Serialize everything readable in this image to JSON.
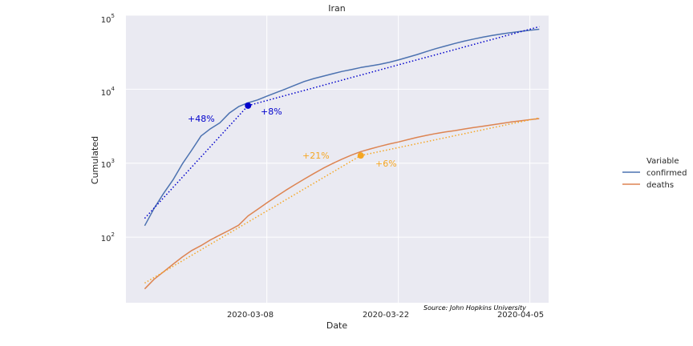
{
  "chart_data": {
    "type": "line",
    "title": "Iran",
    "xlabel": "Date",
    "ylabel": "Cumulated",
    "yscale": "log",
    "ylim": [
      13,
      100000
    ],
    "xlim": [
      "2020-02-22",
      "2020-04-07"
    ],
    "x_tick_labels": [
      "2020-03-08",
      "2020-03-22",
      "2020-04-05"
    ],
    "y_tick_labels": [
      {
        "base": "10",
        "exp": "2",
        "value": 100
      },
      {
        "base": "10",
        "exp": "3",
        "value": 1000
      },
      {
        "base": "10",
        "exp": "4",
        "value": 10000
      },
      {
        "base": "10",
        "exp": "5",
        "value": 100000
      }
    ],
    "grid": true,
    "background": "#eaeaf2",
    "legend": {
      "title": "Variable",
      "placement": "right",
      "entries": [
        {
          "name": "confirmed",
          "color": "#4c72b0"
        },
        {
          "name": "deaths",
          "color": "#dd8452"
        }
      ]
    },
    "series": [
      {
        "name": "confirmed",
        "color": "#4c72b0",
        "x": [
          "2020-02-24",
          "2020-02-25",
          "2020-02-26",
          "2020-02-27",
          "2020-02-28",
          "2020-02-29",
          "2020-03-01",
          "2020-03-02",
          "2020-03-03",
          "2020-03-04",
          "2020-03-05",
          "2020-03-06",
          "2020-03-07",
          "2020-03-08",
          "2020-03-09",
          "2020-03-10",
          "2020-03-11",
          "2020-03-12",
          "2020-03-13",
          "2020-03-14",
          "2020-03-15",
          "2020-03-16",
          "2020-03-17",
          "2020-03-18",
          "2020-03-19",
          "2020-03-20",
          "2020-03-21",
          "2020-03-22",
          "2020-03-23",
          "2020-03-24",
          "2020-03-25",
          "2020-03-26",
          "2020-03-27",
          "2020-03-28",
          "2020-03-29",
          "2020-03-30",
          "2020-03-31",
          "2020-04-01",
          "2020-04-02",
          "2020-04-03",
          "2020-04-04",
          "2020-04-05",
          "2020-04-06"
        ],
        "values": [
          143,
          245,
          388,
          593,
          978,
          1501,
          2336,
          2922,
          3513,
          4747,
          5823,
          6566,
          7161,
          8042,
          9000,
          10075,
          11364,
          12729,
          13938,
          14991,
          16169,
          17361,
          18407,
          19644,
          20610,
          21638,
          23049,
          24811,
          27017,
          29406,
          32332,
          35408,
          38309,
          41495,
          44605,
          47593,
          50468,
          53183,
          55743,
          58226,
          60500,
          62589,
          64586
        ]
      },
      {
        "name": "deaths",
        "color": "#dd8452",
        "x": [
          "2020-02-24",
          "2020-02-25",
          "2020-02-26",
          "2020-02-27",
          "2020-02-28",
          "2020-02-29",
          "2020-03-01",
          "2020-03-02",
          "2020-03-03",
          "2020-03-04",
          "2020-03-05",
          "2020-03-06",
          "2020-03-07",
          "2020-03-08",
          "2020-03-09",
          "2020-03-10",
          "2020-03-11",
          "2020-03-12",
          "2020-03-13",
          "2020-03-14",
          "2020-03-15",
          "2020-03-16",
          "2020-03-17",
          "2020-03-18",
          "2020-03-19",
          "2020-03-20",
          "2020-03-21",
          "2020-03-22",
          "2020-03-23",
          "2020-03-24",
          "2020-03-25",
          "2020-03-26",
          "2020-03-27",
          "2020-03-28",
          "2020-03-29",
          "2020-03-30",
          "2020-03-31",
          "2020-04-01",
          "2020-04-02",
          "2020-04-03",
          "2020-04-04",
          "2020-04-05",
          "2020-04-06"
        ],
        "values": [
          20,
          27,
          34,
          43,
          54,
          66,
          77,
          92,
          107,
          124,
          145,
          194,
          237,
          291,
          354,
          429,
          514,
          611,
          724,
          853,
          988,
          1135,
          1284,
          1433,
          1556,
          1685,
          1812,
          1934,
          2077,
          2234,
          2378,
          2517,
          2640,
          2757,
          2898,
          3036,
          3160,
          3294,
          3452,
          3603,
          3739,
          3872,
          4003
        ]
      }
    ],
    "trend_lines": [
      {
        "series": "confirmed",
        "color": "#0000cc",
        "x": [
          "2020-02-24",
          "2020-03-06"
        ],
        "values": [
          180,
          6000
        ]
      },
      {
        "series": "confirmed",
        "color": "#0000cc",
        "x": [
          "2020-03-06",
          "2020-04-06"
        ],
        "values": [
          6000,
          70000
        ]
      },
      {
        "series": "deaths",
        "color": "#f5a623",
        "x": [
          "2020-02-24",
          "2020-03-18"
        ],
        "values": [
          24,
          1270
        ]
      },
      {
        "series": "deaths",
        "color": "#f5a623",
        "x": [
          "2020-03-18",
          "2020-04-06"
        ],
        "values": [
          1270,
          4100
        ]
      }
    ],
    "markers": [
      {
        "series": "confirmed",
        "color": "#0000cc",
        "x": "2020-03-06",
        "y": 6000
      },
      {
        "series": "deaths",
        "color": "#f5a623",
        "x": "2020-03-18",
        "y": 1270
      }
    ],
    "annotations": [
      {
        "text": "+48%",
        "color": "#0000cc"
      },
      {
        "text": "+8%",
        "color": "#0000cc"
      },
      {
        "text": "+21%",
        "color": "#f5a623"
      },
      {
        "text": "+6%",
        "color": "#f5a623"
      }
    ],
    "source": "Source: John Hopkins University"
  }
}
